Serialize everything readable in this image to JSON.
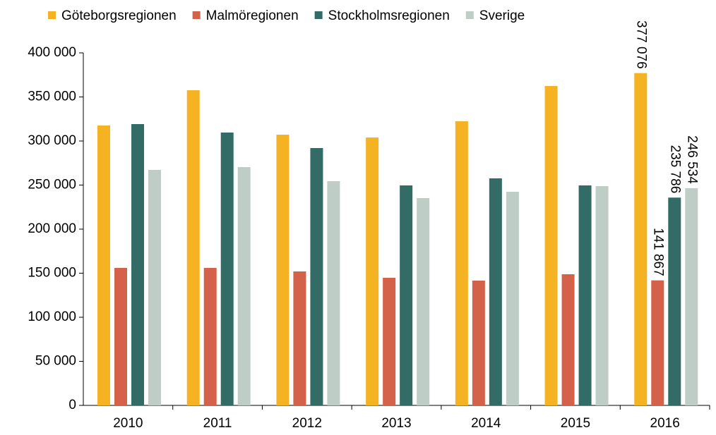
{
  "chart_data": {
    "type": "bar",
    "categories": [
      "2010",
      "2011",
      "2012",
      "2013",
      "2014",
      "2015",
      "2016"
    ],
    "series": [
      {
        "name": "Göteborgsregionen",
        "color": "#f5b324",
        "values": [
          317600,
          357600,
          307200,
          304000,
          322400,
          362400,
          377076
        ],
        "value_labels": [
          null,
          null,
          null,
          null,
          null,
          null,
          "377 076"
        ]
      },
      {
        "name": "Malmöregionen",
        "color": "#d4614a",
        "values": [
          156000,
          156000,
          152000,
          144800,
          141600,
          148800,
          141867
        ],
        "value_labels": [
          null,
          null,
          null,
          null,
          null,
          null,
          "141 867"
        ]
      },
      {
        "name": "Stockholmsregionen",
        "color": "#336b66",
        "values": [
          319200,
          309600,
          292000,
          249600,
          257600,
          249600,
          235786
        ],
        "value_labels": [
          null,
          null,
          null,
          null,
          null,
          null,
          "235 786"
        ]
      },
      {
        "name": "Sverige",
        "color": "#bfcdc7",
        "values": [
          267200,
          270400,
          254400,
          235200,
          242400,
          248800,
          246534
        ],
        "value_labels": [
          null,
          null,
          null,
          null,
          null,
          null,
          "246 534"
        ]
      }
    ],
    "ylim": [
      0,
      400000
    ],
    "yticks": [
      0,
      {
        "value": 50000,
        "label": "50 000"
      },
      {
        "value": 100000,
        "label": "100 000"
      },
      {
        "value": 150000,
        "label": "150 000"
      },
      {
        "value": 200000,
        "label": "200 000"
      },
      {
        "value": 250000,
        "label": "250 000"
      },
      {
        "value": 300000,
        "label": "300 000"
      },
      {
        "value": 350000,
        "label": "350 000"
      },
      {
        "value": 400000,
        "label": "400 000"
      }
    ],
    "legend": "top",
    "grid": false
  }
}
